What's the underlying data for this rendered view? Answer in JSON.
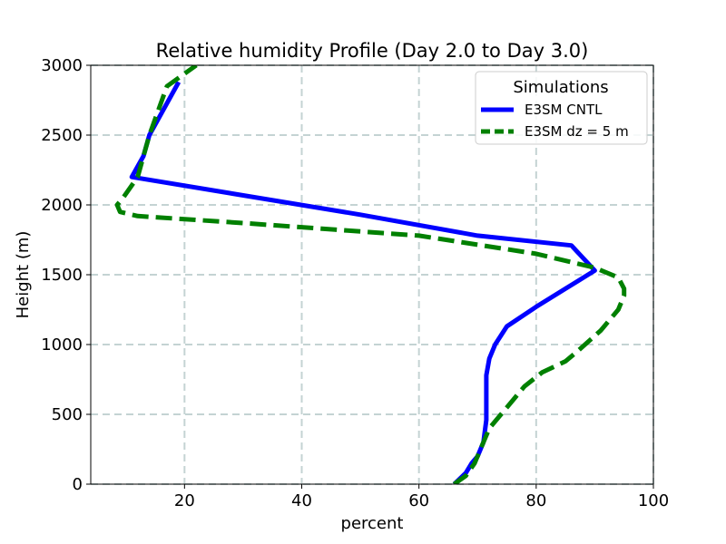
{
  "chart_data": {
    "type": "line",
    "title": "Relative humidity Profile (Day 2.0 to Day 3.0)",
    "xlabel": "percent",
    "ylabel": "Height (m)",
    "xlim": [
      4,
      100
    ],
    "ylim": [
      0,
      3000
    ],
    "xticks": [
      20,
      40,
      60,
      80,
      100
    ],
    "yticks": [
      0,
      500,
      1000,
      1500,
      2000,
      2500,
      3000
    ],
    "grid": true,
    "legend": {
      "title": "Simulations",
      "location": "upper-right"
    },
    "series": [
      {
        "name": "E3SM CNTL",
        "color": "#0000ff",
        "linestyle": "solid",
        "x": [
          66.0,
          68.0,
          69.0,
          70.0,
          71.0,
          71.5,
          71.5,
          71.5,
          72.0,
          73.0,
          75.0,
          80.0,
          85.0,
          90.0,
          86.0,
          70.0,
          50.0,
          11.0,
          13.0,
          14.0,
          19.0
        ],
        "y": [
          0,
          80,
          150,
          200,
          300,
          460,
          650,
          780,
          900,
          1000,
          1130,
          1270,
          1400,
          1530,
          1710,
          1780,
          1930,
          2200,
          2350,
          2500,
          2880
        ]
      },
      {
        "name": "E3SM dz = 5 m",
        "color": "#008000",
        "linestyle": "dashed",
        "x": [
          66.0,
          68.0,
          69.5,
          71.0,
          72.0,
          74.0,
          76.0,
          78.0,
          81.0,
          85.0,
          87.0,
          91.0,
          94.0,
          95.0,
          95.0,
          94.0,
          90.0,
          80.0,
          60.0,
          30.0,
          12.0,
          9.0,
          8.5,
          9.5,
          12.0,
          14.0,
          17.0,
          22.0
        ],
        "y": [
          0,
          60,
          150,
          300,
          400,
          500,
          600,
          700,
          800,
          880,
          950,
          1100,
          1250,
          1350,
          1400,
          1480,
          1550,
          1650,
          1780,
          1870,
          1920,
          1950,
          2000,
          2050,
          2200,
          2500,
          2850,
          3000
        ]
      }
    ]
  }
}
